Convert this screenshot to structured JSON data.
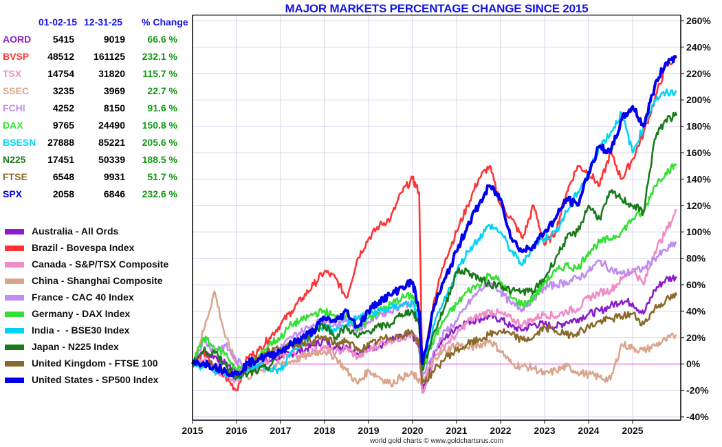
{
  "chart_data": {
    "type": "line",
    "title": "MAJOR MARKETS PERCENTAGE CHANGE SINCE 2015",
    "xlabel": "",
    "ylabel": "",
    "x_range": [
      2015.0,
      2026.0
    ],
    "ylim": [
      -40,
      260
    ],
    "y_ticks": [
      -40,
      -20,
      0,
      20,
      40,
      60,
      80,
      100,
      120,
      140,
      160,
      180,
      200,
      220,
      240,
      260
    ],
    "y_tick_labels": [
      "-40%",
      "-20%",
      "0%",
      "20%",
      "40%",
      "60%",
      "80%",
      "100%",
      "120%",
      "140%",
      "160%",
      "180%",
      "200%",
      "220%",
      "240%",
      "260%"
    ],
    "x_ticks": [
      2015,
      2016,
      2017,
      2018,
      2019,
      2020,
      2021,
      2022,
      2023,
      2024,
      2025
    ],
    "x_tick_labels": [
      "2015",
      "2016",
      "2017",
      "2018",
      "2019",
      "2020",
      "2021",
      "2022",
      "2023",
      "2024",
      "2025"
    ],
    "grid": true,
    "legend_position": "left",
    "zero_line_color": "#e040e0",
    "note": "values approximate, read from chart at quarterly resolution",
    "x": [
      2015.0,
      2015.25,
      2015.5,
      2015.75,
      2016.0,
      2016.25,
      2016.5,
      2016.75,
      2017.0,
      2017.25,
      2017.5,
      2017.75,
      2018.0,
      2018.25,
      2018.5,
      2018.75,
      2019.0,
      2019.25,
      2019.5,
      2019.75,
      2020.0,
      2020.15,
      2020.22,
      2020.5,
      2020.75,
      2021.0,
      2021.25,
      2021.5,
      2021.75,
      2022.0,
      2022.25,
      2022.5,
      2022.75,
      2023.0,
      2023.25,
      2023.5,
      2023.75,
      2024.0,
      2024.25,
      2024.5,
      2024.75,
      2025.0,
      2025.25,
      2025.5,
      2025.75,
      2026.0
    ],
    "series": [
      {
        "name": "Australia - All Ords",
        "symbol": "AORD",
        "color": "#8a1ccc",
        "values": [
          0,
          8,
          6,
          0,
          -5,
          -3,
          0,
          2,
          6,
          8,
          10,
          14,
          18,
          12,
          14,
          8,
          12,
          14,
          18,
          20,
          22,
          12,
          -20,
          10,
          20,
          28,
          32,
          34,
          36,
          34,
          28,
          26,
          30,
          30,
          28,
          32,
          34,
          38,
          40,
          44,
          48,
          46,
          38,
          56,
          64,
          66
        ]
      },
      {
        "name": "Brazil - Bovespa Index",
        "symbol": "BVSP",
        "color": "#ff3333",
        "values": [
          0,
          10,
          -5,
          -10,
          -20,
          5,
          10,
          20,
          30,
          40,
          50,
          60,
          70,
          65,
          50,
          80,
          95,
          105,
          110,
          130,
          140,
          130,
          -5,
          50,
          80,
          100,
          120,
          140,
          150,
          120,
          110,
          95,
          120,
          90,
          100,
          130,
          150,
          145,
          135,
          160,
          140,
          155,
          175,
          200,
          225,
          232
        ]
      },
      {
        "name": "Canada - S&P/TSX Composite",
        "symbol": "TSX",
        "color": "#f08cc8",
        "values": [
          0,
          2,
          -4,
          -8,
          -12,
          -5,
          2,
          4,
          6,
          8,
          6,
          10,
          12,
          8,
          12,
          5,
          10,
          15,
          18,
          20,
          22,
          15,
          -22,
          5,
          15,
          22,
          32,
          36,
          40,
          38,
          34,
          30,
          34,
          38,
          36,
          40,
          42,
          50,
          54,
          56,
          64,
          72,
          60,
          85,
          100,
          116
        ]
      },
      {
        "name": "China - Shanghai Composite",
        "symbol": "SSEC",
        "color": "#d9a68c",
        "values": [
          0,
          25,
          55,
          20,
          0,
          -10,
          -5,
          -3,
          0,
          2,
          5,
          8,
          10,
          5,
          -5,
          -15,
          -5,
          -10,
          -15,
          -10,
          -8,
          -12,
          -15,
          5,
          10,
          15,
          12,
          14,
          18,
          10,
          0,
          -2,
          -3,
          -8,
          -5,
          -2,
          -6,
          -8,
          -10,
          -12,
          15,
          12,
          10,
          14,
          18,
          22
        ]
      },
      {
        "name": "France - CAC 40 Index",
        "symbol": "FCHI",
        "color": "#c08cf0",
        "values": [
          0,
          18,
          10,
          14,
          2,
          -2,
          5,
          8,
          12,
          20,
          25,
          30,
          33,
          30,
          34,
          25,
          32,
          38,
          40,
          45,
          46,
          30,
          -10,
          10,
          25,
          32,
          45,
          55,
          62,
          55,
          45,
          42,
          50,
          58,
          60,
          62,
          65,
          70,
          78,
          72,
          68,
          70,
          72,
          80,
          86,
          92
        ]
      },
      {
        "name": "Germany - DAX Index",
        "symbol": "DAX",
        "color": "#33e033",
        "values": [
          0,
          20,
          12,
          8,
          -5,
          0,
          5,
          15,
          20,
          30,
          33,
          38,
          40,
          35,
          38,
          25,
          35,
          40,
          45,
          50,
          52,
          40,
          -5,
          20,
          35,
          45,
          55,
          60,
          68,
          62,
          50,
          45,
          50,
          62,
          70,
          75,
          72,
          85,
          92,
          95,
          100,
          110,
          115,
          135,
          145,
          151
        ]
      },
      {
        "name": "India - BSE30 Index",
        "symbol": "BSESN",
        "color": "#00d4f4",
        "values": [
          0,
          -2,
          -5,
          -8,
          -10,
          -5,
          0,
          -3,
          -5,
          10,
          15,
          25,
          28,
          25,
          30,
          35,
          38,
          40,
          42,
          45,
          46,
          35,
          -5,
          30,
          50,
          70,
          85,
          95,
          105,
          100,
          85,
          75,
          90,
          95,
          100,
          115,
          130,
          145,
          165,
          175,
          190,
          160,
          180,
          200,
          205,
          206
        ]
      },
      {
        "name": "Japan - N225 Index",
        "symbol": "N225",
        "color": "#1a7a1a",
        "values": [
          0,
          10,
          8,
          0,
          -10,
          -8,
          -5,
          -2,
          10,
          15,
          18,
          25,
          30,
          20,
          28,
          20,
          25,
          28,
          30,
          38,
          40,
          30,
          -5,
          25,
          45,
          70,
          70,
          65,
          60,
          60,
          55,
          55,
          55,
          65,
          80,
          95,
          100,
          120,
          110,
          130,
          125,
          120,
          115,
          170,
          185,
          188
        ]
      },
      {
        "name": "United Kingdom - FTSE 100",
        "symbol": "FTSE",
        "color": "#8a6a2a",
        "values": [
          0,
          2,
          -2,
          -6,
          -8,
          -3,
          5,
          10,
          12,
          14,
          16,
          18,
          20,
          15,
          18,
          10,
          14,
          18,
          20,
          22,
          24,
          15,
          -15,
          -5,
          5,
          10,
          15,
          18,
          22,
          25,
          22,
          18,
          20,
          28,
          25,
          22,
          24,
          28,
          32,
          34,
          36,
          38,
          30,
          42,
          48,
          52
        ]
      },
      {
        "name": "United States - SP500 Index",
        "symbol": "SPX",
        "color": "#0000ee",
        "values": [
          0,
          1,
          -2,
          -5,
          -8,
          0,
          4,
          6,
          10,
          15,
          20,
          25,
          35,
          32,
          40,
          28,
          40,
          48,
          52,
          58,
          62,
          40,
          0,
          45,
          65,
          85,
          105,
          120,
          135,
          125,
          95,
          85,
          90,
          100,
          110,
          125,
          120,
          145,
          165,
          160,
          185,
          195,
          180,
          210,
          228,
          233
        ]
      }
    ]
  },
  "table": {
    "headers": {
      "date_start": "01-02-15",
      "date_end": "12-31-25",
      "change": "% Change"
    },
    "rows": [
      {
        "symbol": "AORD",
        "color": "#8a1ccc",
        "start": "5415",
        "end": "9019",
        "change": "66.6 %"
      },
      {
        "symbol": "BVSP",
        "color": "#ff3333",
        "start": "48512",
        "end": "161125",
        "change": "232.1 %"
      },
      {
        "symbol": "TSX",
        "color": "#f08cc8",
        "start": "14754",
        "end": "31820",
        "change": "115.7 %"
      },
      {
        "symbol": "SSEC",
        "color": "#d9a68c",
        "start": "3235",
        "end": "3969",
        "change": "22.7 %"
      },
      {
        "symbol": "FCHI",
        "color": "#c08cf0",
        "start": "4252",
        "end": "8150",
        "change": "91.6 %"
      },
      {
        "symbol": "DAX",
        "color": "#33e033",
        "start": "9765",
        "end": "24490",
        "change": "150.8 %"
      },
      {
        "symbol": "BSESN",
        "color": "#00d4f4",
        "start": "27888",
        "end": "85221",
        "change": "205.6 %"
      },
      {
        "symbol": "N225",
        "color": "#1a7a1a",
        "start": "17451",
        "end": "50339",
        "change": "188.5 %"
      },
      {
        "symbol": "FTSE",
        "color": "#8a6a2a",
        "start": "6548",
        "end": "9931",
        "change": "51.7 %"
      },
      {
        "symbol": "SPX",
        "color": "#0000ee",
        "start": "2058",
        "end": "6846",
        "change": "232.6 %"
      }
    ]
  },
  "legend": [
    {
      "label": "Australia - All Ords",
      "color": "#8a1ccc"
    },
    {
      "label": "Brazil - Bovespa Index",
      "color": "#ff3333"
    },
    {
      "label": "Canada - S&P/TSX Composite",
      "color": "#f08cc8"
    },
    {
      "label": "China - Shanghai Composite",
      "color": "#d9a68c"
    },
    {
      "label": "France - CAC 40 Index",
      "color": "#c08cf0"
    },
    {
      "label": "Germany - DAX Index",
      "color": "#33e033"
    },
    {
      "label": "India -  - BSE30 Index",
      "color": "#00d4f4"
    },
    {
      "label": "Japan - N225 Index",
      "color": "#1a7a1a"
    },
    {
      "label": "United Kingdom - FTSE 100",
      "color": "#8a6a2a"
    },
    {
      "label": "United States - SP500 Index",
      "color": "#0000ee"
    }
  ],
  "footer": "world gold charts © www.goldchartsrus.com",
  "colors": {
    "title": "#1414e6",
    "header": "#1414e6",
    "change": "#0f9a12",
    "grid": "#d4d4ee",
    "axis": "#000000"
  }
}
